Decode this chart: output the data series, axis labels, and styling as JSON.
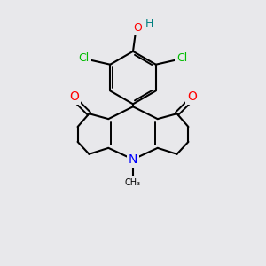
{
  "background_color": "#e8e8eb",
  "bond_color": "#000000",
  "atom_colors": {
    "O": "#ff0000",
    "N": "#0000ff",
    "Cl": "#00bb00",
    "OH_O": "#ff0000",
    "OH_H": "#008080",
    "C": "#000000"
  },
  "figsize": [
    3.0,
    3.0
  ],
  "dpi": 100
}
